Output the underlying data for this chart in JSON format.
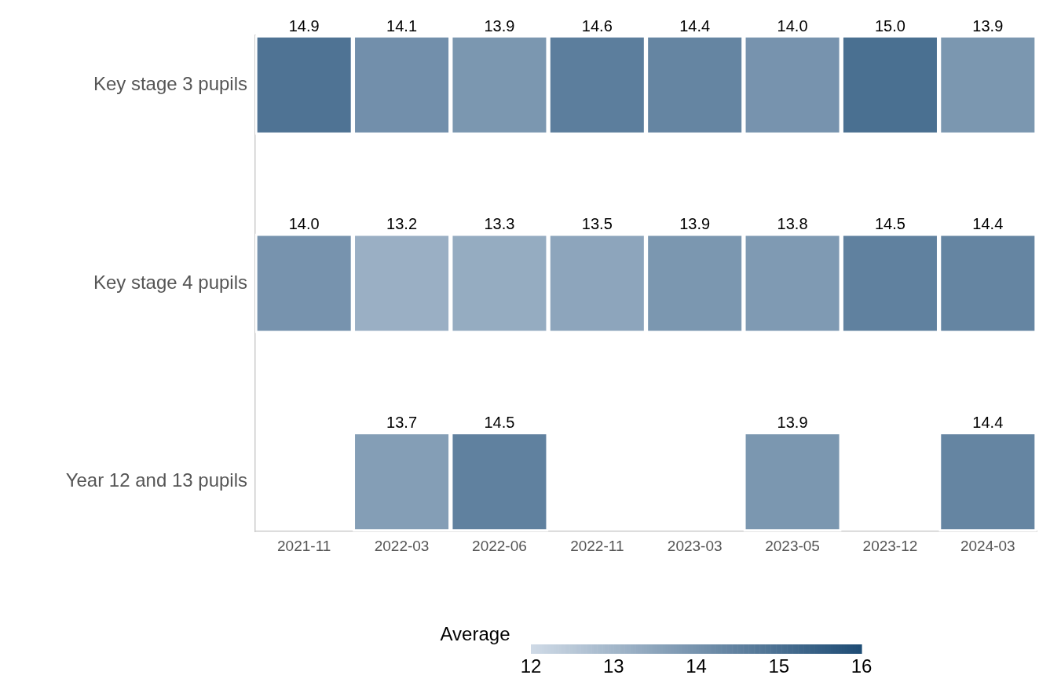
{
  "chart_data": {
    "type": "heatmap",
    "categories": [
      "2021-11",
      "2022-03",
      "2022-06",
      "2022-11",
      "2023-03",
      "2023-05",
      "2023-12",
      "2024-03"
    ],
    "y_categories": [
      "Key stage 3 pupils",
      "Key stage 4 pupils",
      "Year 12 and 13 pupils"
    ],
    "cells": [
      [
        14.9,
        14.1,
        13.9,
        14.6,
        14.4,
        14.0,
        15.0,
        13.9
      ],
      [
        14.0,
        13.2,
        13.3,
        13.5,
        13.9,
        13.8,
        14.5,
        14.4
      ],
      [
        null,
        13.7,
        14.5,
        null,
        null,
        13.9,
        null,
        14.4
      ]
    ],
    "cell_labels": [
      [
        "14.9",
        "14.1",
        "13.9",
        "14.6",
        "14.4",
        "14.0",
        "15.0",
        "13.9"
      ],
      [
        "14.0",
        "13.2",
        "13.3",
        "13.5",
        "13.9",
        "13.8",
        "14.5",
        "14.4"
      ],
      [
        null,
        "13.7",
        "14.5",
        null,
        null,
        "13.9",
        null,
        "14.4"
      ]
    ],
    "data_labels": true,
    "legend_title": "Average",
    "clim": [
      12,
      16
    ],
    "cticks": [
      12,
      13,
      14,
      15,
      16
    ]
  }
}
